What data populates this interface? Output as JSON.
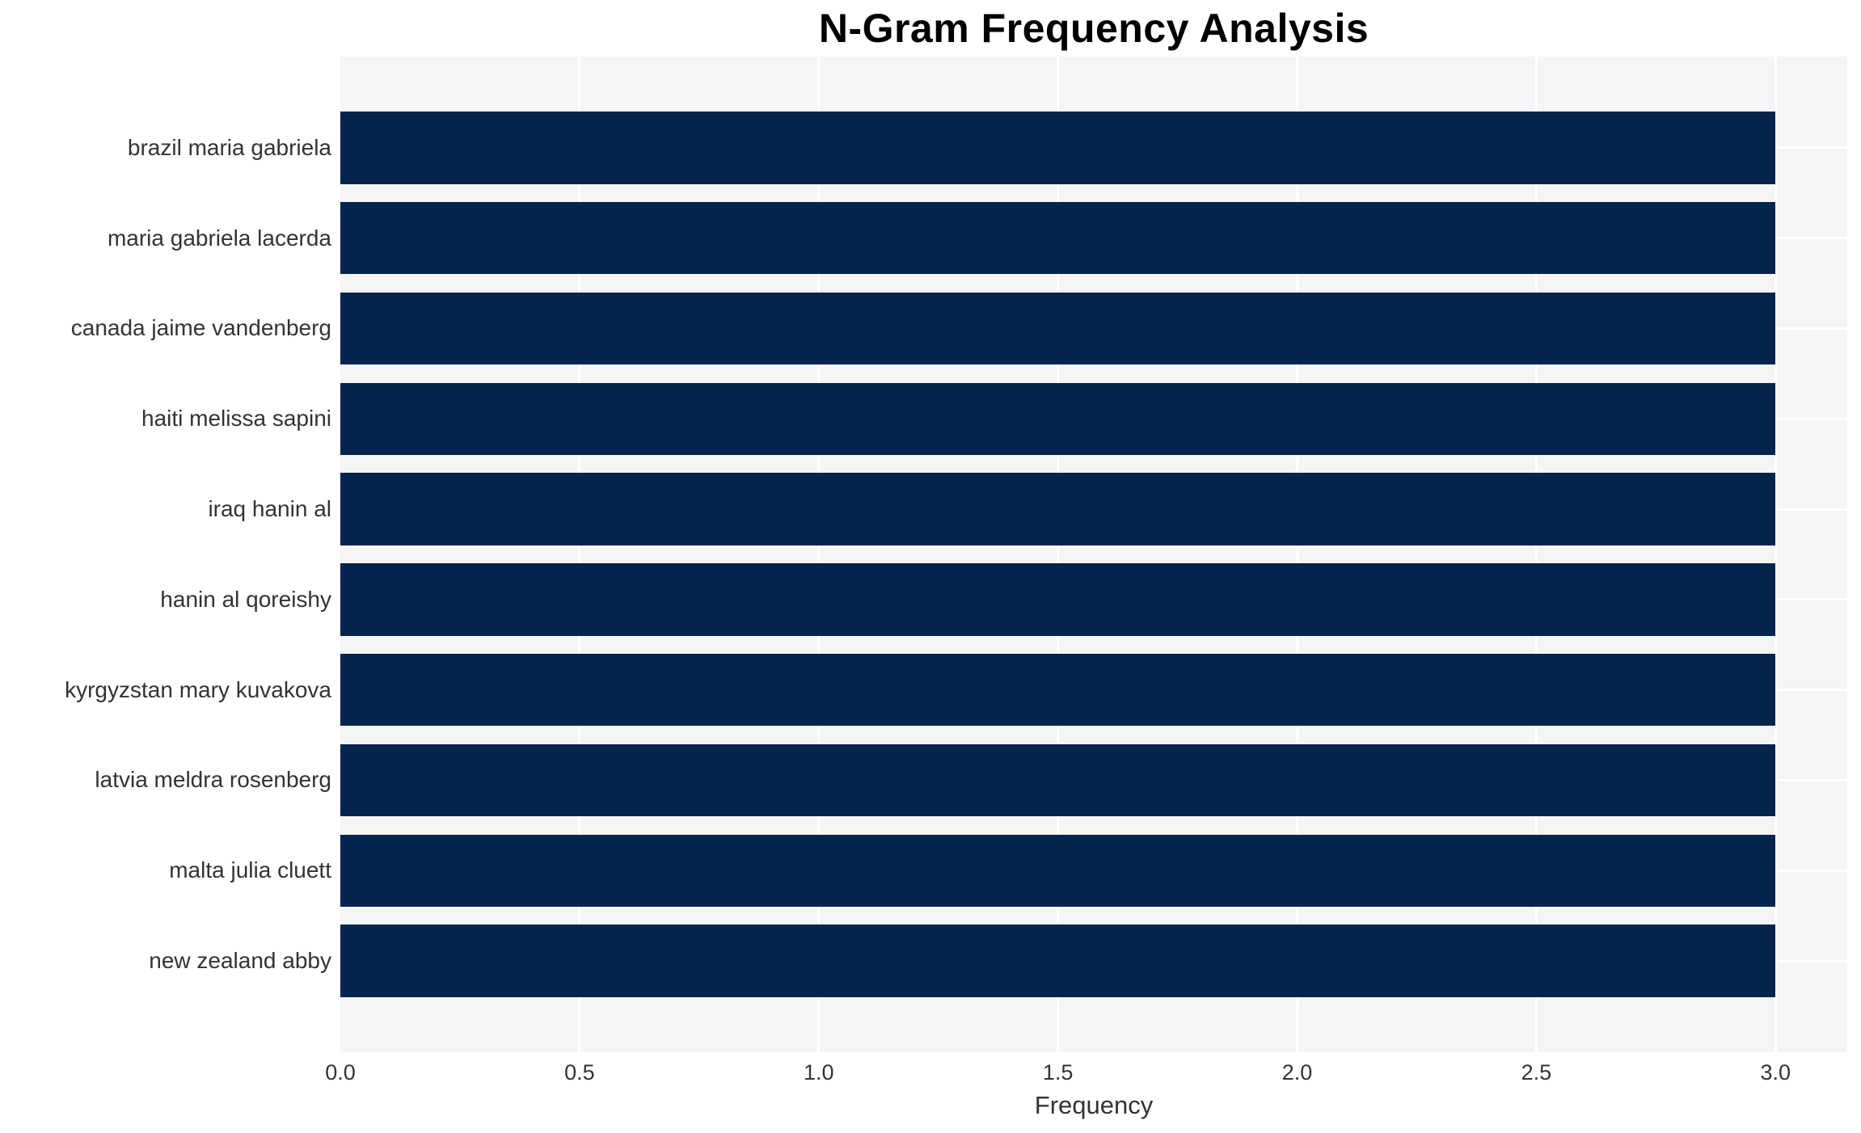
{
  "chart_data": {
    "type": "bar",
    "orientation": "horizontal",
    "title": "N-Gram Frequency Analysis",
    "xlabel": "Frequency",
    "ylabel": "",
    "categories": [
      "brazil maria gabriela",
      "maria gabriela lacerda",
      "canada jaime vandenberg",
      "haiti melissa sapini",
      "iraq hanin al",
      "hanin al qoreishy",
      "kyrgyzstan mary kuvakova",
      "latvia meldra rosenberg",
      "malta julia cluett",
      "new zealand abby"
    ],
    "values": [
      3,
      3,
      3,
      3,
      3,
      3,
      3,
      3,
      3,
      3
    ],
    "xlim": [
      0,
      3.15
    ],
    "xticks": [
      0.5,
      1.0,
      1.5,
      2.0,
      2.5,
      3.0
    ],
    "xtick_labels": [
      "0.0",
      "0.5",
      "1.0",
      "1.5",
      "2.0",
      "2.5",
      "3.0"
    ],
    "xtick_values": [
      0.0,
      0.5,
      1.0,
      1.5,
      2.0,
      2.5,
      3.0
    ],
    "grid": true,
    "legend": false,
    "colors": {
      "bar": "#03244d",
      "plot_background": "#f5f5f6",
      "grid_line": "#ffffff",
      "tick_text": "#333333",
      "title_text": "#000000",
      "figure_background": "#ffffff"
    }
  }
}
